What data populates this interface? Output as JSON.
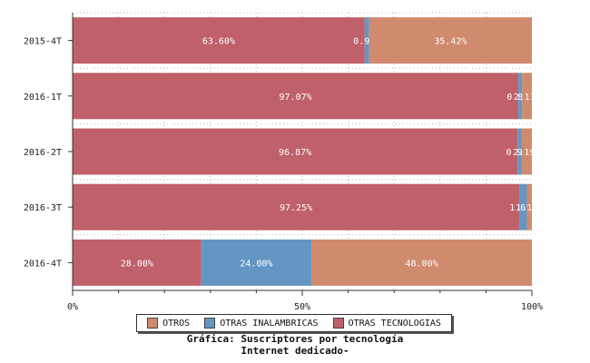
{
  "chart_data": {
    "type": "bar",
    "orientation": "horizontal",
    "stacked": true,
    "categories": [
      "2015-4T",
      "2016-1T",
      "2016-2T",
      "2016-3T",
      "2016-4T"
    ],
    "series": [
      {
        "name": "OTRAS TECNOLOGIAS",
        "color": "#c0606a",
        "values": [
          63.6,
          97.07,
          96.87,
          97.25,
          28.0
        ],
        "labels": [
          "63.60%",
          "97.07%",
          "96.87%",
          "97.25%",
          "28.00%"
        ]
      },
      {
        "name": "OTRAS INALAMBRICAS",
        "color": "#6496c3",
        "values": [
          0.98,
          0.82,
          0.94,
          1.65,
          24.0
        ],
        "labels": [
          "0.98%",
          "0.82%",
          "0.94%",
          "1.65%",
          "24.00%"
        ]
      },
      {
        "name": "OTROS",
        "color": "#d08a6e",
        "values": [
          35.42,
          2.11,
          2.19,
          1.1,
          48.0
        ],
        "labels": [
          "35.42%",
          "2.11%",
          "2.19%",
          "1.10%",
          "48.00%"
        ]
      }
    ],
    "xticks": [
      "0%",
      "50%",
      "100%"
    ],
    "xlim": [
      0,
      100
    ],
    "grid": true,
    "legend": {
      "placement": "bottom",
      "entries": [
        {
          "name": "OTROS",
          "color": "#d08a6e"
        },
        {
          "name": "OTRAS INALAMBRICAS",
          "color": "#6496c3"
        },
        {
          "name": "OTRAS TECNOLOGIAS",
          "color": "#c0606a"
        }
      ]
    },
    "title_lines": [
      "Gráfica: Suscriptores por tecnología",
      "Internet dedicado-"
    ]
  }
}
